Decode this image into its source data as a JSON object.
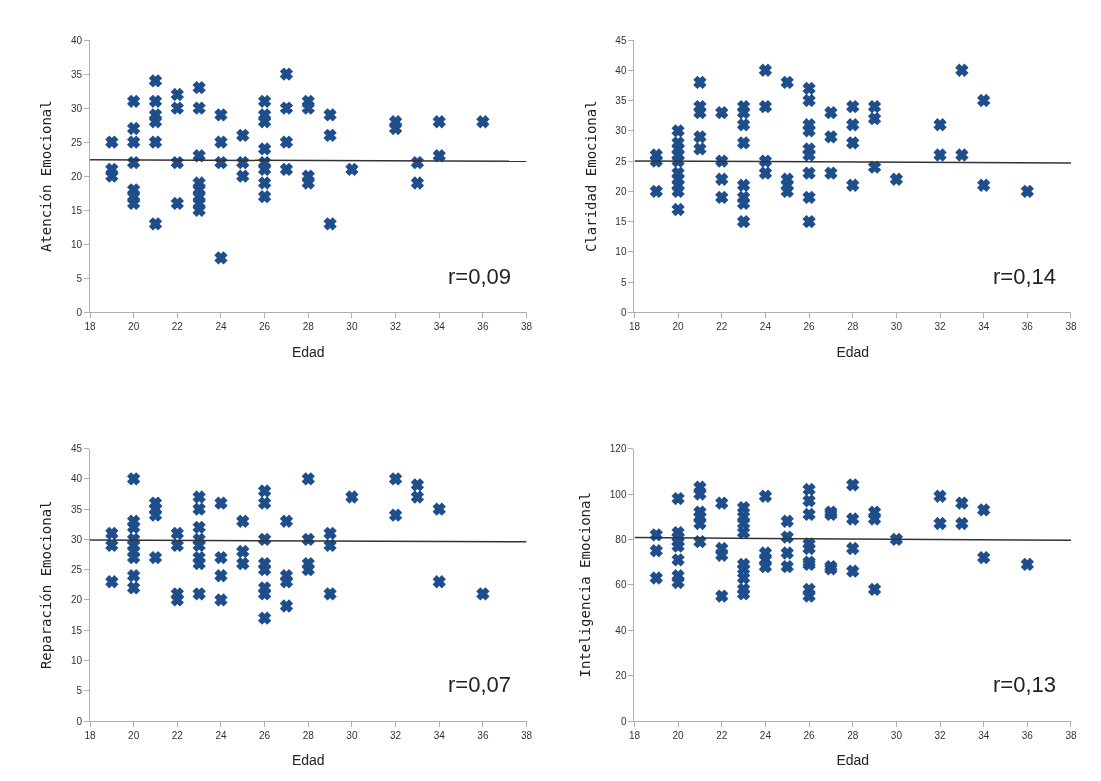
{
  "chart_data": [
    {
      "type": "scatter",
      "xlabel": "Edad",
      "ylabel": "Atención Emocional",
      "xlim": [
        18,
        38
      ],
      "xticks": [
        18,
        20,
        22,
        24,
        26,
        28,
        30,
        32,
        34,
        36,
        38
      ],
      "ylim": [
        0,
        40
      ],
      "yticks": [
        0,
        5,
        10,
        15,
        20,
        25,
        30,
        35,
        40
      ],
      "grid": false,
      "annotations": [
        "r=0,09"
      ],
      "series": [
        {
          "type": "scatter",
          "marker": "cross",
          "color": "#1f4e8c",
          "x": [
            19,
            19,
            19,
            20,
            20,
            20,
            20,
            20,
            20,
            20,
            21,
            21,
            21,
            21,
            21,
            21,
            22,
            22,
            22,
            22,
            23,
            23,
            23,
            23,
            23,
            23,
            23,
            23,
            24,
            24,
            24,
            24,
            25,
            25,
            25,
            26,
            26,
            26,
            26,
            26,
            26,
            26,
            26,
            27,
            27,
            27,
            27,
            28,
            28,
            28,
            28,
            29,
            29,
            29,
            30,
            32,
            32,
            33,
            33,
            34,
            34,
            36
          ],
          "values": [
            25,
            21,
            20,
            31,
            27,
            25,
            22,
            18,
            17,
            16,
            34,
            31,
            29,
            28,
            25,
            13,
            32,
            30,
            22,
            16,
            33,
            30,
            23,
            19,
            18,
            17,
            16,
            15,
            29,
            25,
            22,
            8,
            26,
            22,
            20,
            31,
            29,
            28,
            24,
            22,
            21,
            19,
            17,
            35,
            30,
            25,
            21,
            31,
            30,
            20,
            19,
            29,
            26,
            13,
            21,
            28,
            27,
            22,
            19,
            28,
            23,
            28
          ]
        },
        {
          "type": "line",
          "color": "#333333",
          "x": [
            18,
            38
          ],
          "values": [
            22.4,
            22.2
          ]
        }
      ]
    },
    {
      "type": "scatter",
      "xlabel": "Edad",
      "ylabel": "Claridad Emocional",
      "xlim": [
        18,
        38
      ],
      "xticks": [
        18,
        20,
        22,
        24,
        26,
        28,
        30,
        32,
        34,
        36,
        38
      ],
      "ylim": [
        0,
        45
      ],
      "yticks": [
        0,
        5,
        10,
        15,
        20,
        25,
        30,
        35,
        40,
        45
      ],
      "grid": false,
      "annotations": [
        "r=0,14"
      ],
      "series": [
        {
          "type": "scatter",
          "color": "#1f4e8c",
          "x": [
            19,
            19,
            19,
            20,
            20,
            20,
            20,
            20,
            20,
            20,
            20,
            20,
            20,
            21,
            21,
            21,
            21,
            21,
            22,
            22,
            22,
            22,
            23,
            23,
            23,
            23,
            23,
            23,
            23,
            23,
            24,
            24,
            24,
            24,
            25,
            25,
            25,
            25,
            26,
            26,
            26,
            26,
            26,
            26,
            26,
            26,
            26,
            27,
            27,
            27,
            28,
            28,
            28,
            28,
            29,
            29,
            29,
            30,
            32,
            32,
            33,
            33,
            34,
            34,
            36
          ],
          "marker": "cross",
          "values": [
            26,
            25,
            20,
            30,
            28,
            27,
            26,
            25,
            23,
            22,
            21,
            20,
            17,
            38,
            34,
            33,
            29,
            27,
            33,
            25,
            22,
            19,
            34,
            33,
            31,
            28,
            21,
            19,
            18,
            15,
            40,
            34,
            25,
            23,
            38,
            22,
            21,
            20,
            37,
            35,
            31,
            30,
            27,
            26,
            23,
            19,
            15,
            33,
            29,
            23,
            34,
            31,
            28,
            21,
            34,
            32,
            24,
            22,
            31,
            26,
            40,
            26,
            35,
            21,
            20
          ]
        },
        {
          "type": "line",
          "color": "#333333",
          "x": [
            18,
            38
          ],
          "values": [
            25.0,
            24.7
          ]
        }
      ]
    },
    {
      "type": "scatter",
      "xlabel": "Edad",
      "ylabel": "Reparación Emocional",
      "xlim": [
        18,
        38
      ],
      "xticks": [
        18,
        20,
        22,
        24,
        26,
        28,
        30,
        32,
        34,
        36,
        38
      ],
      "ylim": [
        0,
        45
      ],
      "yticks": [
        0,
        5,
        10,
        15,
        20,
        25,
        30,
        35,
        40,
        45
      ],
      "grid": false,
      "annotations": [
        "r=0,07"
      ],
      "series": [
        {
          "type": "scatter",
          "color": "#1f4e8c",
          "x": [
            19,
            19,
            19,
            20,
            20,
            20,
            20,
            20,
            20,
            20,
            20,
            20,
            21,
            21,
            21,
            21,
            22,
            22,
            22,
            22,
            23,
            23,
            23,
            23,
            23,
            23,
            23,
            23,
            24,
            24,
            24,
            24,
            25,
            25,
            25,
            26,
            26,
            26,
            26,
            26,
            26,
            26,
            26,
            27,
            27,
            27,
            27,
            28,
            28,
            28,
            28,
            29,
            29,
            29,
            30,
            32,
            32,
            33,
            33,
            34,
            34,
            36
          ],
          "marker": "cross",
          "values": [
            31,
            29,
            23,
            40,
            33,
            32,
            30,
            29,
            28,
            27,
            24,
            22,
            36,
            35,
            34,
            27,
            31,
            29,
            21,
            20,
            37,
            35,
            32,
            30,
            29,
            27,
            26,
            21,
            36,
            27,
            24,
            20,
            33,
            28,
            26,
            38,
            36,
            30,
            26,
            25,
            22,
            21,
            17,
            33,
            24,
            23,
            19,
            40,
            30,
            26,
            25,
            31,
            29,
            21,
            37,
            40,
            34,
            39,
            37,
            35,
            23,
            21
          ]
        },
        {
          "type": "line",
          "color": "#333333",
          "x": [
            18,
            38
          ],
          "values": [
            29.9,
            29.6
          ]
        }
      ]
    },
    {
      "type": "scatter",
      "xlabel": "Edad",
      "ylabel": "Inteligencia Emocional",
      "xlim": [
        18,
        38
      ],
      "xticks": [
        18,
        20,
        22,
        24,
        26,
        28,
        30,
        32,
        34,
        36,
        38
      ],
      "ylim": [
        0,
        120
      ],
      "yticks": [
        0,
        20,
        40,
        60,
        80,
        100,
        120
      ],
      "grid": false,
      "annotations": [
        "r=0,13"
      ],
      "series": [
        {
          "type": "scatter",
          "color": "#1f4e8c",
          "x": [
            19,
            19,
            19,
            20,
            20,
            20,
            20,
            20,
            20,
            20,
            20,
            21,
            21,
            21,
            21,
            21,
            21,
            22,
            22,
            22,
            22,
            23,
            23,
            23,
            23,
            23,
            23,
            23,
            23,
            23,
            24,
            24,
            24,
            24,
            25,
            25,
            25,
            25,
            26,
            26,
            26,
            26,
            26,
            26,
            26,
            26,
            26,
            27,
            27,
            27,
            27,
            28,
            28,
            28,
            28,
            29,
            29,
            29,
            30,
            32,
            32,
            33,
            33,
            34,
            34,
            36
          ],
          "marker": "cross",
          "values": [
            82,
            75,
            63,
            98,
            83,
            81,
            79,
            77,
            71,
            64,
            61,
            103,
            100,
            92,
            90,
            87,
            79,
            96,
            76,
            73,
            55,
            94,
            90,
            87,
            83,
            69,
            67,
            63,
            58,
            56,
            99,
            74,
            71,
            68,
            88,
            81,
            74,
            68,
            102,
            97,
            91,
            78,
            76,
            70,
            69,
            58,
            55,
            92,
            91,
            68,
            67,
            104,
            89,
            76,
            66,
            92,
            89,
            58,
            80,
            99,
            87,
            96,
            87,
            93,
            72,
            69
          ]
        },
        {
          "type": "line",
          "color": "#333333",
          "x": [
            18,
            38
          ],
          "values": [
            80.8,
            79.6
          ]
        }
      ]
    }
  ]
}
